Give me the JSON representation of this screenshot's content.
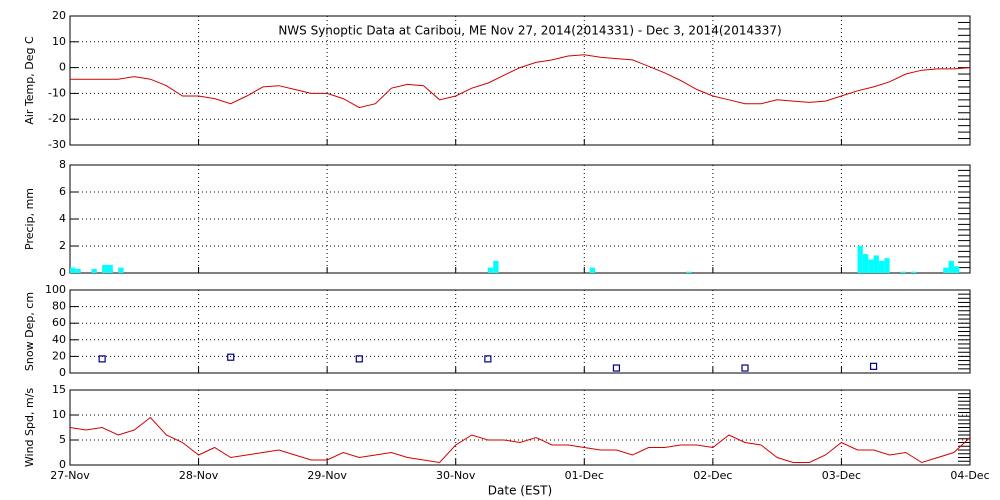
{
  "chart_data": [
    {
      "type": "line",
      "title": "NWS Synoptic Data at Caribou, ME   Nov 27, 2014(2014331) - Dec  3, 2014(2014337)",
      "ylabel": "Air Temp, Deg C",
      "color": "#d40000",
      "x": [
        0,
        3,
        6,
        9,
        12,
        15,
        18,
        21,
        24,
        27,
        30,
        33,
        36,
        39,
        42,
        45,
        48,
        51,
        54,
        57,
        60,
        63,
        66,
        69,
        72,
        75,
        78,
        81,
        84,
        87,
        90,
        93,
        96,
        99,
        102,
        105,
        108,
        111,
        114,
        117,
        120,
        123,
        126,
        129,
        132,
        135,
        138,
        141,
        144,
        147,
        150,
        153,
        156,
        159,
        162,
        165,
        168
      ],
      "values": [
        -4.5,
        -4.5,
        -4.5,
        -4.5,
        -3.5,
        -4.5,
        -7,
        -11,
        -11,
        -12,
        -14,
        -11,
        -7.5,
        -7,
        -8.5,
        -10,
        -10,
        -12,
        -15.5,
        -14,
        -8,
        -6.5,
        -7,
        -12.5,
        -11,
        -8,
        -6,
        -3,
        0,
        2,
        3,
        4.5,
        5,
        4,
        3.5,
        3,
        0.5,
        -2,
        -5,
        -8.5,
        -11,
        -12.5,
        -14,
        -14,
        -12.5,
        -13,
        -13.5,
        -13,
        -11,
        -9,
        -7.5,
        -5.5,
        -2.5,
        -1,
        -0.5,
        -0.5,
        0
      ],
      "xlim": [
        0,
        168
      ],
      "xticks": [
        0,
        24,
        48,
        72,
        96,
        120,
        144,
        168
      ],
      "ylim": [
        -30,
        20
      ],
      "yticks": [
        -30,
        -20,
        -10,
        0,
        10,
        20
      ],
      "grid": true
    },
    {
      "type": "bar",
      "ylabel": "Precip, mm",
      "color": "#00ffff",
      "x": [
        0,
        1,
        4,
        6,
        7,
        9,
        78,
        79,
        97,
        115,
        147,
        148,
        149,
        150,
        151,
        152,
        155,
        157,
        163,
        164,
        165
      ],
      "values": [
        0.4,
        0.3,
        0.3,
        0.6,
        0.6,
        0.4,
        0.4,
        0.9,
        0.4,
        0.1,
        2.0,
        1.4,
        1.0,
        1.3,
        0.9,
        1.1,
        0.1,
        0.1,
        0.4,
        0.9,
        0.5
      ],
      "xlim": [
        0,
        168
      ],
      "xticks": [
        0,
        24,
        48,
        72,
        96,
        120,
        144,
        168
      ],
      "ylim": [
        0,
        8
      ],
      "yticks": [
        0,
        2,
        4,
        6,
        8
      ],
      "grid": true
    },
    {
      "type": "scatter",
      "ylabel": "Snow Dep, cm",
      "color": "#000080",
      "x": [
        6,
        30,
        54,
        78,
        102,
        126,
        150
      ],
      "values": [
        17,
        19,
        17,
        17,
        6,
        6,
        8
      ],
      "xlim": [
        0,
        168
      ],
      "xticks": [
        0,
        24,
        48,
        72,
        96,
        120,
        144,
        168
      ],
      "ylim": [
        0,
        100
      ],
      "yticks": [
        0,
        20,
        40,
        60,
        80,
        100
      ],
      "grid": true
    },
    {
      "type": "line",
      "ylabel": "Wind Spd, m/s",
      "xlabel": "Date (EST)",
      "color": "#d40000",
      "x": [
        0,
        3,
        6,
        9,
        12,
        15,
        18,
        21,
        24,
        27,
        30,
        33,
        36,
        39,
        42,
        45,
        48,
        51,
        54,
        57,
        60,
        63,
        66,
        69,
        72,
        75,
        78,
        81,
        84,
        87,
        90,
        93,
        96,
        99,
        102,
        105,
        108,
        111,
        114,
        117,
        120,
        123,
        126,
        129,
        132,
        135,
        138,
        141,
        144,
        147,
        150,
        153,
        156,
        159,
        162,
        165,
        168
      ],
      "values": [
        7.5,
        7,
        7.5,
        6,
        7,
        9.5,
        6,
        4.5,
        2,
        3.5,
        1.5,
        2,
        2.5,
        3,
        2,
        1,
        1,
        2.5,
        1.5,
        2,
        2.5,
        1.5,
        1,
        0.5,
        4,
        6,
        5,
        5,
        4.5,
        5.5,
        4,
        4,
        3.5,
        3,
        3,
        2,
        3.5,
        3.5,
        4,
        4,
        3.5,
        6,
        4.5,
        4,
        1.5,
        0.5,
        0.5,
        2,
        4.5,
        3,
        3,
        2,
        2.5,
        0.5,
        1.5,
        2.5,
        5.5
      ],
      "xlim": [
        0,
        168
      ],
      "xticks": [
        {
          "value": 0,
          "label": "27-Nov"
        },
        {
          "value": 24,
          "label": "28-Nov"
        },
        {
          "value": 48,
          "label": "29-Nov"
        },
        {
          "value": 72,
          "label": "30-Nov"
        },
        {
          "value": 96,
          "label": "01-Dec"
        },
        {
          "value": 120,
          "label": "02-Dec"
        },
        {
          "value": 144,
          "label": "03-Dec"
        },
        {
          "value": 168,
          "label": "04-Dec"
        }
      ],
      "ylim": [
        0,
        15
      ],
      "yticks": [
        0,
        5,
        10,
        15
      ],
      "grid": true
    }
  ]
}
